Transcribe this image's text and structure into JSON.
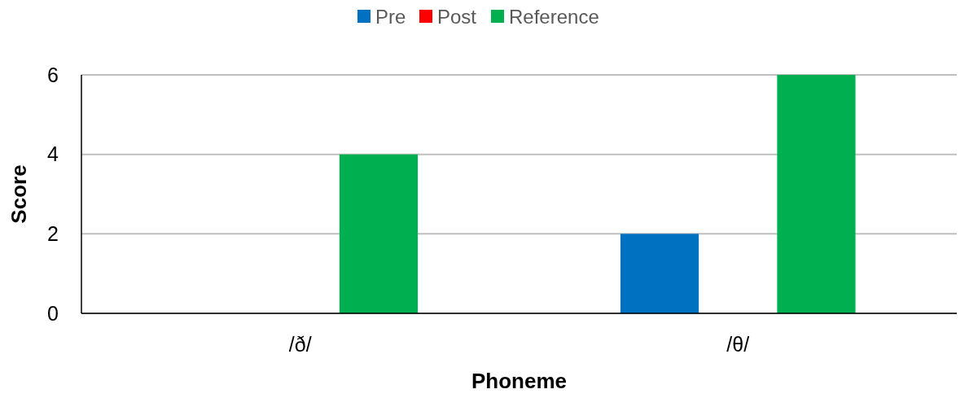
{
  "chart_data": {
    "type": "bar",
    "xlabel": "Phoneme",
    "ylabel": "Score",
    "categories": [
      "/ð/",
      "/θ/"
    ],
    "series": [
      {
        "name": "Pre",
        "color": "#0070c0",
        "values": [
          0,
          2
        ]
      },
      {
        "name": "Post",
        "color": "#ff0000",
        "values": [
          0,
          0
        ]
      },
      {
        "name": "Reference",
        "color": "#00b050",
        "values": [
          4,
          6
        ]
      }
    ],
    "ylim": [
      0,
      6
    ],
    "yticks": [
      0,
      2,
      4,
      6
    ],
    "grid": "y",
    "legend": "top"
  }
}
